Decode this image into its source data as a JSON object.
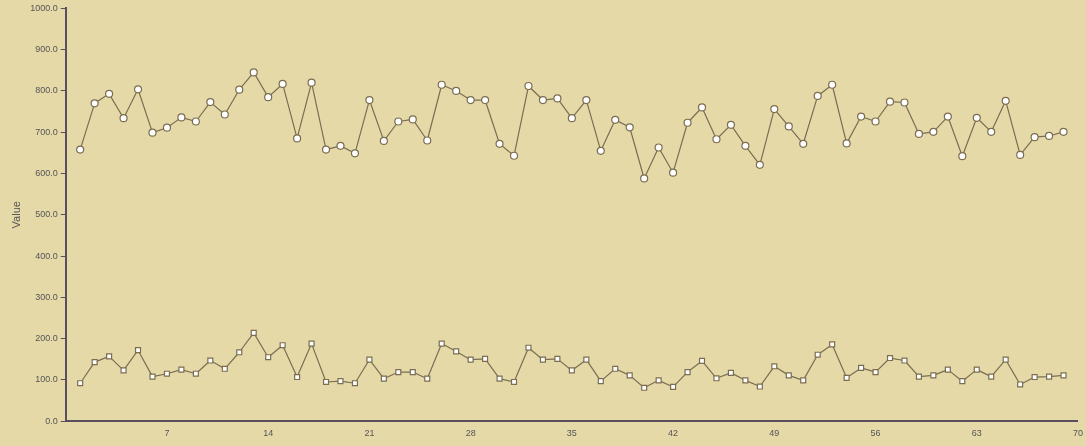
{
  "chart_data": {
    "type": "line",
    "ylabel": "Value",
    "x": [
      1,
      2,
      3,
      4,
      5,
      6,
      7,
      8,
      9,
      10,
      11,
      12,
      13,
      14,
      15,
      16,
      17,
      18,
      19,
      20,
      21,
      22,
      23,
      24,
      25,
      26,
      27,
      28,
      29,
      30,
      31,
      32,
      33,
      34,
      35,
      36,
      37,
      38,
      39,
      40,
      41,
      42,
      43,
      44,
      45,
      46,
      47,
      48,
      49,
      50,
      51,
      52,
      53,
      54,
      55,
      56,
      57,
      58,
      59,
      60,
      61,
      62,
      63,
      64,
      65,
      66,
      67,
      68,
      69
    ],
    "xlim": [
      0,
      70
    ],
    "xticks": [
      7,
      14,
      21,
      28,
      35,
      42,
      49,
      56,
      63,
      70
    ],
    "ylim": [
      0,
      1000
    ],
    "yticks": [
      {
        "value": 0,
        "label": "0.0"
      },
      {
        "value": 100,
        "label": "100.0"
      },
      {
        "value": 200,
        "label": "200.0"
      },
      {
        "value": 300,
        "label": "300.0"
      },
      {
        "value": 400,
        "label": "400.0"
      },
      {
        "value": 500,
        "label": "500.0"
      },
      {
        "value": 600,
        "label": "600.0"
      },
      {
        "value": 700,
        "label": "700.0"
      },
      {
        "value": 800,
        "label": "800.0"
      },
      {
        "value": 900,
        "label": "900.0"
      },
      {
        "value": 1000,
        "label": "1000.0"
      }
    ],
    "grid": false,
    "legend": false,
    "line_style": "solid",
    "series": [
      {
        "color": "#7a6e52",
        "marker": "circle",
        "values": [
          658,
          770,
          793,
          734,
          804,
          699,
          711,
          736,
          726,
          773,
          743,
          803,
          845,
          785,
          817,
          685,
          820,
          658,
          667,
          649,
          778,
          679,
          726,
          731,
          680,
          815,
          800,
          778,
          778,
          672,
          643,
          812,
          778,
          782,
          734,
          778,
          655,
          730,
          712,
          588,
          663,
          602,
          723,
          760,
          683,
          718,
          667,
          621,
          756,
          714,
          672,
          788,
          815,
          673,
          738,
          726,
          774,
          772,
          696,
          701,
          738,
          642,
          735,
          701,
          776,
          645,
          688,
          691,
          701
        ]
      },
      {
        "color": "#7a6e52",
        "marker": "square",
        "values": [
          92,
          143,
          157,
          123,
          172,
          108,
          115,
          125,
          115,
          147,
          127,
          167,
          214,
          155,
          184,
          107,
          188,
          95,
          97,
          92,
          149,
          103,
          119,
          119,
          103,
          188,
          169,
          149,
          151,
          103,
          95,
          178,
          149,
          151,
          123,
          149,
          97,
          127,
          111,
          81,
          99,
          83,
          119,
          146,
          104,
          117,
          99,
          84,
          133,
          111,
          99,
          161,
          186,
          105,
          129,
          119,
          153,
          147,
          108,
          111,
          125,
          97,
          125,
          108,
          149,
          89,
          107,
          108,
          111
        ]
      }
    ]
  }
}
